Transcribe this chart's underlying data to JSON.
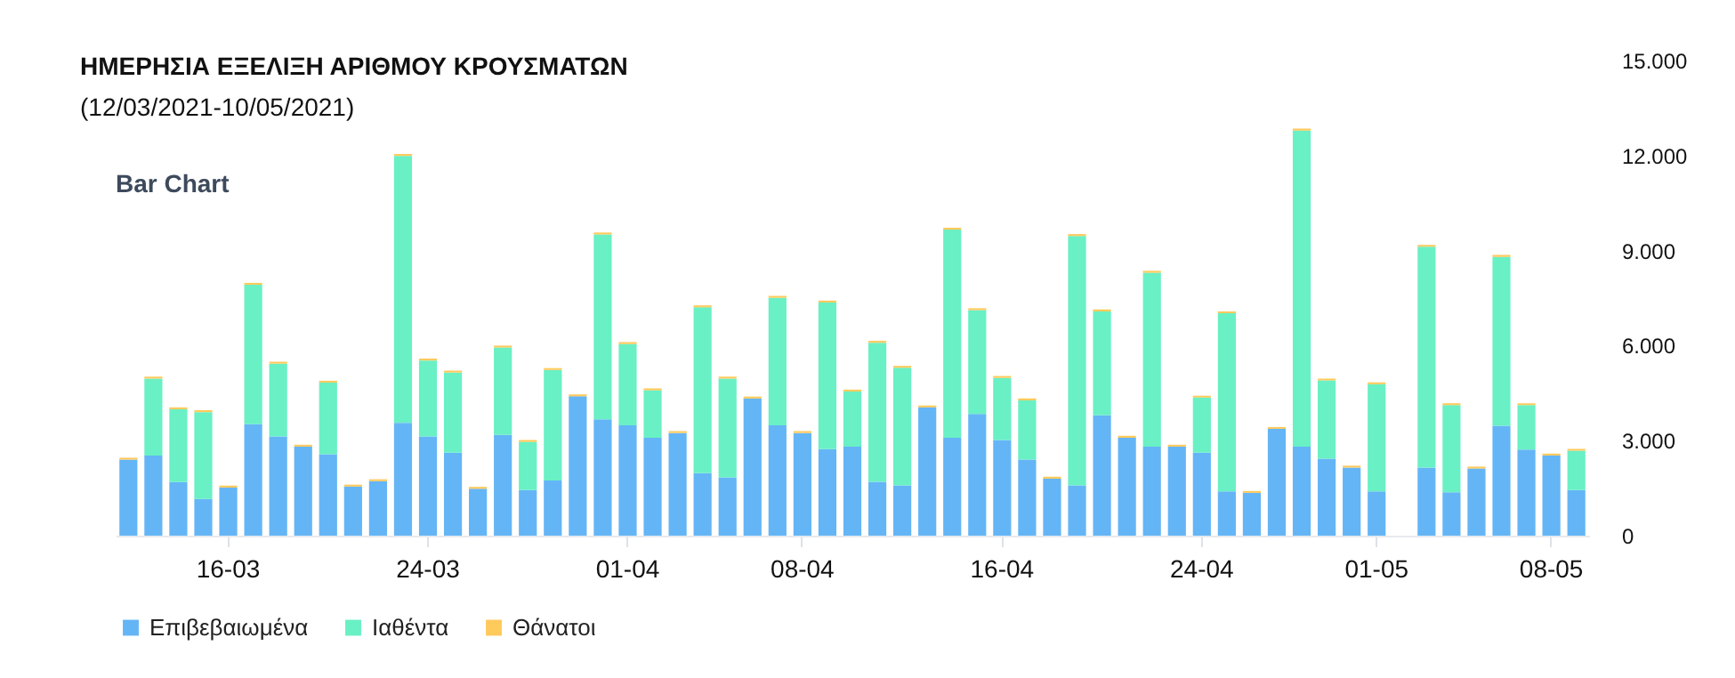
{
  "chart_data": {
    "type": "bar",
    "title": "ΗΜΕΡΗΣΙΑ ΕΞΕΛΙΞΗ ΑΡΙΘΜΟΥ ΚΡΟΥΣΜΑΤΩΝ",
    "subtitle": "(12/03/2021-10/05/2021)",
    "annotations": [
      "Bar Chart"
    ],
    "categories": [
      null,
      null,
      null,
      null,
      "16-03",
      null,
      null,
      null,
      null,
      null,
      null,
      null,
      "24-03",
      null,
      null,
      null,
      null,
      null,
      null,
      null,
      "01-04",
      null,
      null,
      null,
      null,
      null,
      null,
      "08-04",
      null,
      null,
      null,
      null,
      null,
      null,
      null,
      "16-04",
      null,
      null,
      null,
      null,
      null,
      null,
      null,
      "24-04",
      null,
      null,
      null,
      null,
      null,
      null,
      "01-05",
      null,
      null,
      null,
      null,
      null,
      null,
      "08-05",
      null
    ],
    "stacked": true,
    "series": [
      {
        "name": "Επιβεβαιωμένα",
        "color": "#64b5f6",
        "values": [
          2400,
          2530,
          1690,
          1160,
          1520,
          3520,
          3130,
          2810,
          2570,
          1550,
          1720,
          3560,
          3130,
          2620,
          1480,
          3180,
          1440,
          1740,
          4400,
          3670,
          3480,
          3090,
          3240,
          1970,
          1840,
          4330,
          3480,
          3240,
          2730,
          2810,
          1700,
          1590,
          4050,
          3090,
          3840,
          3020,
          2400,
          1800,
          1590,
          3800,
          3090,
          2810,
          2810,
          2620,
          1400,
          1350,
          3370,
          2810,
          2430,
          2150,
          1400,
          null,
          2150,
          1370,
          2120,
          3470,
          2720,
          2530,
          1440
        ]
      },
      {
        "name": "Ιαθέντα",
        "color": "#69f0c4",
        "values": [
          0,
          2430,
          2300,
          2740,
          0,
          4400,
          2300,
          0,
          2260,
          0,
          0,
          8430,
          2400,
          2530,
          0,
          2760,
          1520,
          3490,
          0,
          5840,
          2570,
          1500,
          0,
          5240,
          3120,
          0,
          4030,
          0,
          4630,
          1740,
          4390,
          3710,
          0,
          6570,
          3280,
          1960,
          1870,
          0,
          7870,
          3280,
          0,
          5490,
          0,
          1740,
          5620,
          0,
          0,
          9980,
          2470,
          0,
          3380,
          null,
          6970,
          2750,
          0,
          5330,
          1400,
          0,
          1240
        ]
      },
      {
        "name": "Θάνατοι",
        "color": "#ffca5c",
        "values": [
          60,
          60,
          60,
          60,
          60,
          60,
          60,
          60,
          60,
          60,
          60,
          60,
          60,
          60,
          60,
          60,
          60,
          60,
          60,
          60,
          60,
          60,
          60,
          60,
          60,
          60,
          60,
          60,
          60,
          60,
          60,
          60,
          60,
          60,
          60,
          60,
          60,
          60,
          60,
          60,
          60,
          60,
          60,
          60,
          60,
          60,
          60,
          60,
          60,
          60,
          60,
          null,
          60,
          60,
          60,
          60,
          60,
          60,
          60
        ]
      }
    ],
    "ylim": [
      0,
      15000
    ],
    "yticks": [
      {
        "value": 0,
        "label": "0"
      },
      {
        "value": 3000,
        "label": "3.000"
      },
      {
        "value": 6000,
        "label": "6.000"
      },
      {
        "value": 9000,
        "label": "9.000"
      },
      {
        "value": 12000,
        "label": "12.000"
      },
      {
        "value": 15000,
        "label": "15.000"
      }
    ],
    "grid": false,
    "legend": "bottom left"
  }
}
